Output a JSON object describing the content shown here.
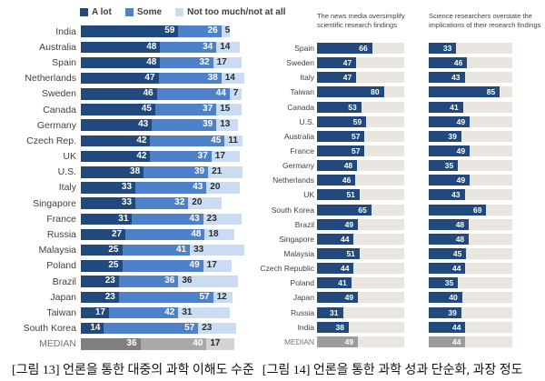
{
  "colors": {
    "a_lot": "#21497e",
    "some": "#4d82ca",
    "not_too_much": "#c9dcf2",
    "track": "#e9e6df",
    "median_dark": "#7f7f7f",
    "median_mid": "#a9a9a9",
    "median_light": "#d3d3d3",
    "median_solid": "#9c9c9c"
  },
  "captions": [
    "[그림 13] 언론을 통한 대중의 과학 이해도 수준",
    "[그림 14] 언론을 통한 과학 성과 단순화, 과장 정도"
  ],
  "chart_data": [
    {
      "type": "bar",
      "variant": "horizontal-stacked",
      "title": "",
      "legend": [
        "A lot",
        "Some",
        "Not too much/not at all"
      ],
      "legend_position": "top",
      "xlim": [
        0,
        100
      ],
      "grid": false,
      "categories": [
        "India",
        "Australia",
        "Spain",
        "Netherlands",
        "Sweden",
        "Canada",
        "Germany",
        "Czech Rep.",
        "UK",
        "U.S.",
        "Italy",
        "Singapore",
        "France",
        "Russia",
        "Malaysia",
        "Poland",
        "Brazil",
        "Japan",
        "Taiwan",
        "South Korea",
        "MEDIAN"
      ],
      "series": [
        {
          "name": "A lot",
          "values": [
            59,
            48,
            48,
            47,
            46,
            45,
            43,
            42,
            42,
            38,
            33,
            33,
            31,
            27,
            25,
            25,
            23,
            23,
            17,
            14,
            36
          ]
        },
        {
          "name": "Some",
          "values": [
            26,
            34,
            32,
            38,
            44,
            37,
            39,
            45,
            37,
            39,
            43,
            32,
            43,
            48,
            41,
            49,
            36,
            57,
            42,
            57,
            40
          ]
        },
        {
          "name": "Not too much/not at all",
          "values": [
            5,
            14,
            17,
            14,
            7,
            15,
            13,
            11,
            17,
            21,
            20,
            20,
            23,
            18,
            33,
            17,
            36,
            12,
            31,
            23,
            17
          ]
        }
      ]
    },
    {
      "type": "bar",
      "variant": "horizontal-two-panel",
      "panel_titles": [
        "The news media oversimplify scientific research findings",
        "Science researchers overstate the implications of their research findings"
      ],
      "xlim": [
        0,
        100
      ],
      "grid": false,
      "categories": [
        "Spain",
        "Sweden",
        "Italy",
        "Taiwan",
        "Canada",
        "U.S.",
        "Australia",
        "France",
        "Germany",
        "Netherlands",
        "UK",
        "South Korea",
        "Brazil",
        "Singapore",
        "Malaysia",
        "Czech Republic",
        "Poland",
        "Japan",
        "Russia",
        "India",
        "MEDIAN"
      ],
      "series": [
        {
          "name": "The news media oversimplify scientific research findings",
          "values": [
            66,
            47,
            47,
            80,
            53,
            59,
            57,
            57,
            48,
            46,
            51,
            65,
            49,
            44,
            51,
            44,
            41,
            49,
            31,
            38,
            49
          ]
        },
        {
          "name": "Science researchers overstate the implications of their research findings",
          "values": [
            33,
            46,
            43,
            85,
            41,
            49,
            39,
            49,
            35,
            49,
            43,
            69,
            48,
            48,
            45,
            44,
            35,
            40,
            39,
            44,
            44
          ]
        }
      ]
    }
  ]
}
